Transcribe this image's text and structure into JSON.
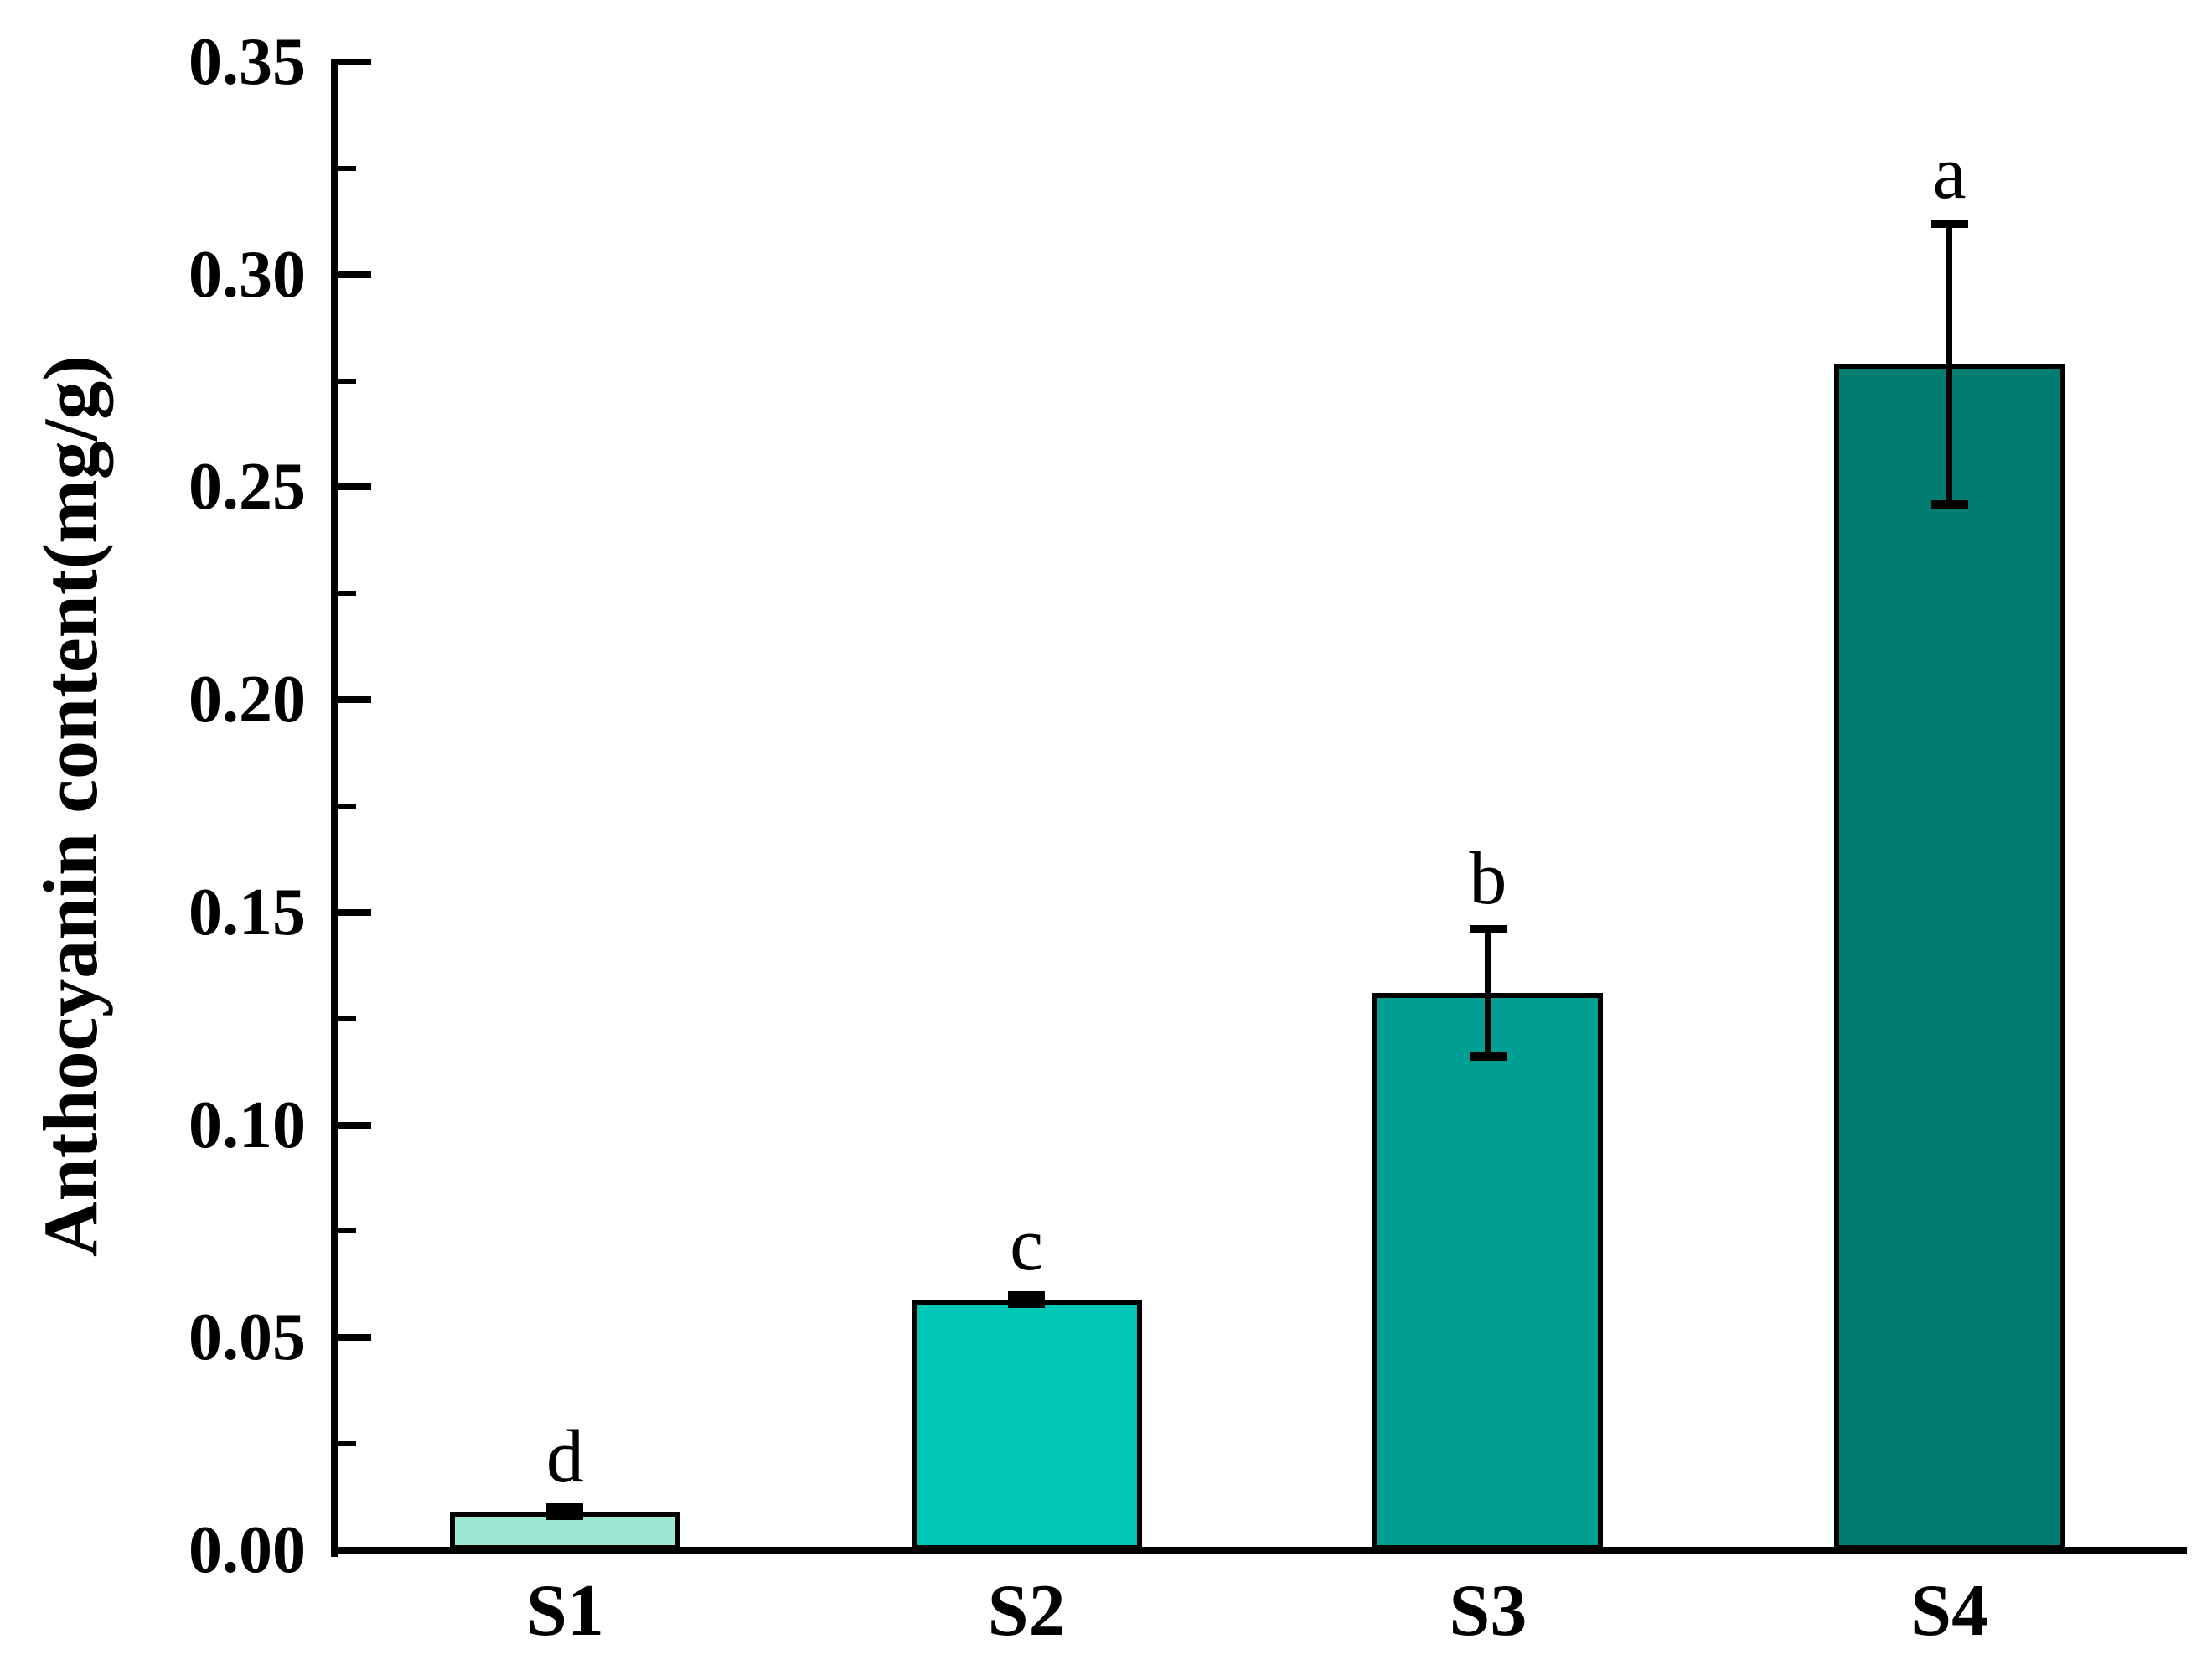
{
  "chart_data": {
    "type": "bar",
    "title": "",
    "xlabel": "",
    "ylabel": "Anthocyanin content(mg/g)",
    "ylim": [
      0,
      0.35
    ],
    "ytick_step": 0.05,
    "yminor_step": 0.025,
    "ytick_labels": [
      "0.00",
      "0.05",
      "0.10",
      "0.15",
      "0.20",
      "0.25",
      "0.30",
      "0.35"
    ],
    "categories": [
      "S1",
      "S2",
      "S3",
      "S4"
    ],
    "values": [
      0.009,
      0.059,
      0.131,
      0.279
    ],
    "errors": [
      0.001,
      0.001,
      0.015,
      0.033
    ],
    "sig_letters": [
      "d",
      "c",
      "b",
      "a"
    ],
    "bar_colors": [
      "#9BE7D4",
      "#00C7B5",
      "#009E93",
      "#007C70"
    ],
    "axis_color": "#000000",
    "background_color": "#FFFFFF",
    "grid": false,
    "legend": null
  }
}
